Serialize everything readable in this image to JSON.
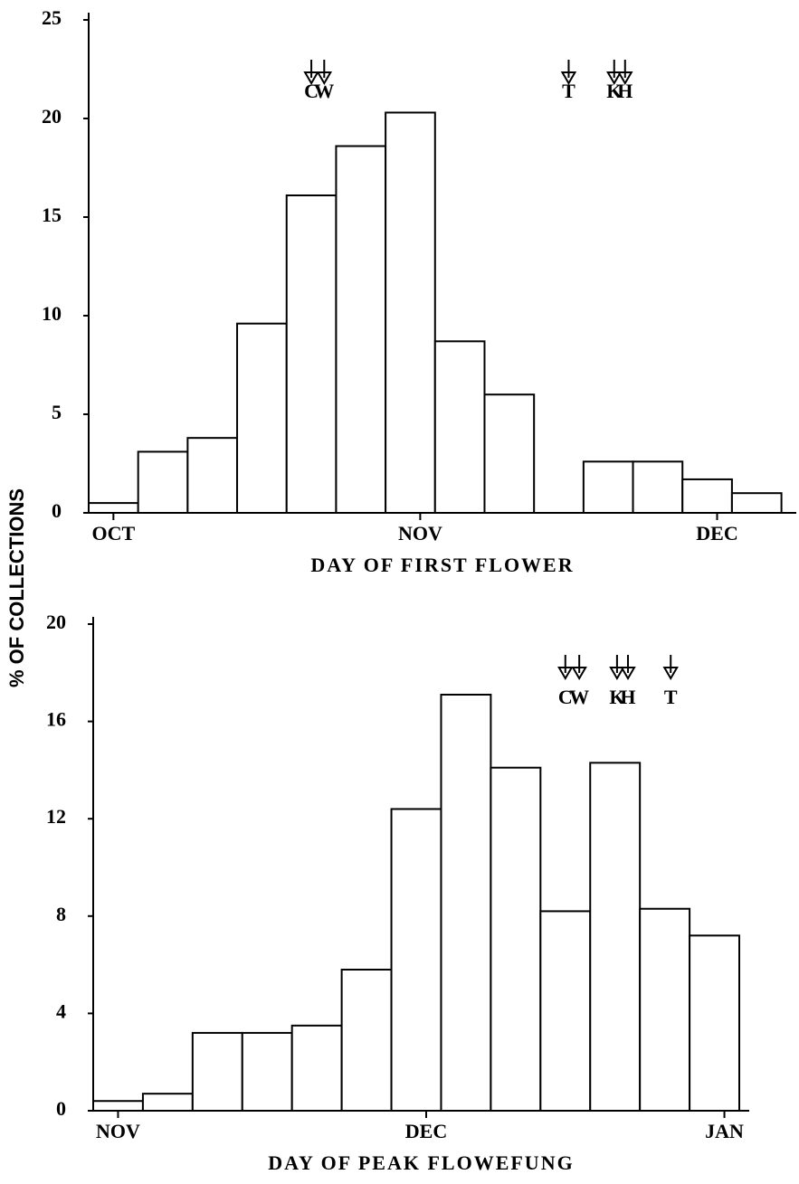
{
  "chart_data": [
    {
      "type": "histogram",
      "xlabel": "DAY OF FIRST FLOWER",
      "ylabel": "% OF COLLECTIONS",
      "bins": [
        -2.5,
        2.5,
        7.5,
        12.5,
        17.5,
        22.5,
        27.5,
        32.5,
        37.5,
        42.5,
        47.5,
        52.5,
        57.5,
        62.5,
        67.5
      ],
      "values": [
        0.5,
        3.1,
        3.8,
        9.6,
        16.1,
        18.6,
        20.3,
        8.7,
        6.0,
        0,
        2.6,
        2.6,
        1.7,
        1.0
      ],
      "color": "#ffffff",
      "xlim": [
        -2.5,
        69
      ],
      "ylim": [
        0,
        25
      ],
      "xticks": [
        {
          "value": 0,
          "label": "OCT"
        },
        {
          "value": 31,
          "label": "NOV"
        },
        {
          "value": 61,
          "label": "DEC"
        }
      ],
      "yticks": [
        0,
        5,
        10,
        15,
        20,
        25
      ],
      "markers": [
        {
          "label": "C",
          "x": 20
        },
        {
          "label": "W",
          "x": 21.3
        },
        {
          "label": "T",
          "x": 46
        },
        {
          "label": "K",
          "x": 50.6
        },
        {
          "label": "H",
          "x": 51.7
        }
      ]
    },
    {
      "type": "histogram",
      "xlabel": "DAY OF PEAK FLOWEFUNG",
      "bins": [
        -2.5,
        2.5,
        7.5,
        12.5,
        17.5,
        22.5,
        27.5,
        32.5,
        37.5,
        42.5,
        47.5,
        52.5,
        57.5,
        62.5
      ],
      "values": [
        0.4,
        0.7,
        3.2,
        3.2,
        3.5,
        5.8,
        12.4,
        17.1,
        14.1,
        8.2,
        14.3,
        8.3,
        7.2
      ],
      "color": "#ffffff",
      "xlim": [
        -2.5,
        63.5
      ],
      "ylim": [
        0,
        20
      ],
      "xticks": [
        {
          "value": 0,
          "label": "NOV"
        },
        {
          "value": 31,
          "label": "DEC"
        },
        {
          "value": 61,
          "label": "JAN"
        }
      ],
      "yticks": [
        0,
        4,
        8,
        12,
        16,
        20
      ],
      "markers": [
        {
          "label": "C",
          "x": 45
        },
        {
          "label": "W",
          "x": 46.4
        },
        {
          "label": "K",
          "x": 50.2
        },
        {
          "label": "H",
          "x": 51.3
        },
        {
          "label": "T",
          "x": 55.6
        }
      ]
    }
  ]
}
